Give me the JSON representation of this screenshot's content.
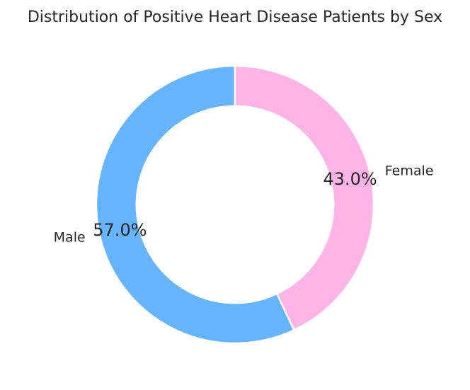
{
  "colors": {
    "background": "#ffffff",
    "text": "#262626",
    "wedge_edge": "#ffffff",
    "male_blue": "#66b3ff",
    "female_pink": "#ffb3e6"
  },
  "chart_data": {
    "type": "pie",
    "title": "Distribution of Positive Heart Disease Patients by Sex",
    "slices": [
      {
        "label": "Male",
        "value": 57.0,
        "pct_label": "57.0%",
        "color": "#66b3ff"
      },
      {
        "label": "Female",
        "value": 43.0,
        "pct_label": "43.0%",
        "color": "#ffb3e6"
      }
    ],
    "start_angle_deg": 90,
    "direction": "counterclockwise",
    "donut_hole_ratio": 0.71,
    "label_distance": 1.1,
    "pct_distance": 0.85,
    "legend_position": "none",
    "grid": false
  }
}
